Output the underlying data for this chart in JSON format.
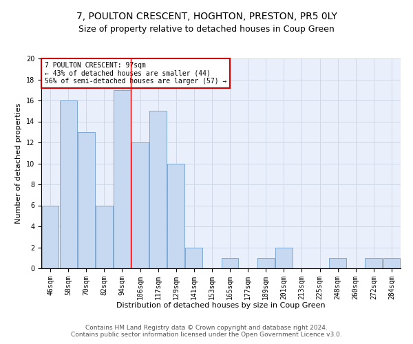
{
  "title1": "7, POULTON CRESCENT, HOGHTON, PRESTON, PR5 0LY",
  "title2": "Size of property relative to detached houses in Coup Green",
  "xlabel": "Distribution of detached houses by size in Coup Green",
  "ylabel": "Number of detached properties",
  "bar_values": [
    6,
    16,
    13,
    6,
    17,
    12,
    15,
    10,
    2,
    0,
    1,
    0,
    1,
    2,
    0,
    0,
    1,
    0,
    1,
    1
  ],
  "bar_labels": [
    "46sqm",
    "58sqm",
    "70sqm",
    "82sqm",
    "94sqm",
    "106sqm",
    "117sqm",
    "129sqm",
    "141sqm",
    "153sqm",
    "165sqm",
    "177sqm",
    "189sqm",
    "201sqm",
    "213sqm",
    "225sqm",
    "248sqm",
    "260sqm",
    "272sqm",
    "284sqm"
  ],
  "bar_color": "#c6d9f0",
  "bar_edge_color": "#5a8fc3",
  "grid_color": "#d0d8e8",
  "background_color": "#eaf0fb",
  "annotation_text": "7 POULTON CRESCENT: 97sqm\n← 43% of detached houses are smaller (44)\n56% of semi-detached houses are larger (57) →",
  "annotation_box_color": "#ffffff",
  "annotation_box_edge": "#cc0000",
  "red_line_x": 4.47,
  "ylim": [
    0,
    20
  ],
  "yticks": [
    0,
    2,
    4,
    6,
    8,
    10,
    12,
    14,
    16,
    18,
    20
  ],
  "footer1": "Contains HM Land Registry data © Crown copyright and database right 2024.",
  "footer2": "Contains public sector information licensed under the Open Government Licence v3.0.",
  "title1_fontsize": 10,
  "title2_fontsize": 9,
  "xlabel_fontsize": 8,
  "ylabel_fontsize": 8,
  "tick_fontsize": 7,
  "annot_fontsize": 7,
  "footer_fontsize": 6.5
}
